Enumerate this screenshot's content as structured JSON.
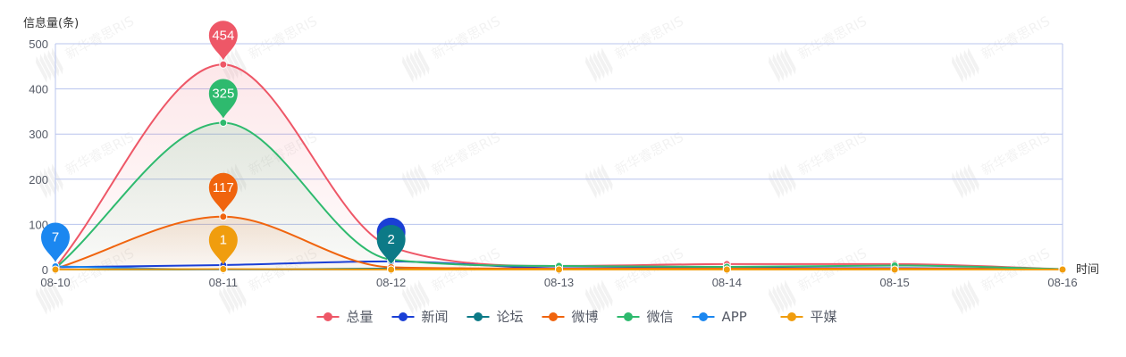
{
  "chart_data": {
    "type": "line",
    "title": "",
    "ylabel": "信息量(条)",
    "xlabel": "时间",
    "ylim": [
      0,
      500
    ],
    "y_ticks": [
      0,
      100,
      200,
      300,
      400,
      500
    ],
    "categories": [
      "08-10",
      "08-11",
      "08-12",
      "08-13",
      "08-14",
      "08-15",
      "08-16"
    ],
    "grid": true,
    "smooth": true,
    "legend_position": "bottom-center",
    "series": [
      {
        "name": "总量",
        "color": "#ee5767",
        "values": [
          5,
          454,
          50,
          8,
          12,
          12,
          1
        ],
        "area": true,
        "pin": {
          "index": 1,
          "label": "454"
        }
      },
      {
        "name": "新闻",
        "color": "#1a3fd6",
        "values": [
          5,
          10,
          18,
          3,
          3,
          3,
          1
        ],
        "area": false,
        "pin": {
          "index": 2,
          "label": ""
        }
      },
      {
        "name": "论坛",
        "color": "#0c7a87",
        "values": [
          0,
          0,
          2,
          0,
          0,
          0,
          0
        ],
        "area": false,
        "pin": {
          "index": 2,
          "label": "2"
        }
      },
      {
        "name": "微博",
        "color": "#f0640e",
        "values": [
          2,
          117,
          5,
          2,
          2,
          2,
          1
        ],
        "area": true,
        "pin": {
          "index": 1,
          "label": "117"
        }
      },
      {
        "name": "微信",
        "color": "#2eba6e",
        "values": [
          3,
          325,
          22,
          8,
          6,
          9,
          1
        ],
        "area": true,
        "pin": {
          "index": 1,
          "label": "325"
        }
      },
      {
        "name": "APP",
        "color": "#1b87f0",
        "values": [
          7,
          0,
          0,
          0,
          0,
          0,
          0
        ],
        "area": false,
        "pin": {
          "index": 0,
          "label": "7"
        }
      },
      {
        "name": "平媒",
        "color": "#f09d0e",
        "values": [
          0,
          1,
          0,
          0,
          0,
          0,
          0
        ],
        "area": false,
        "pin": {
          "index": 1,
          "label": "1"
        }
      }
    ]
  },
  "watermark": "新华睿思RIS"
}
